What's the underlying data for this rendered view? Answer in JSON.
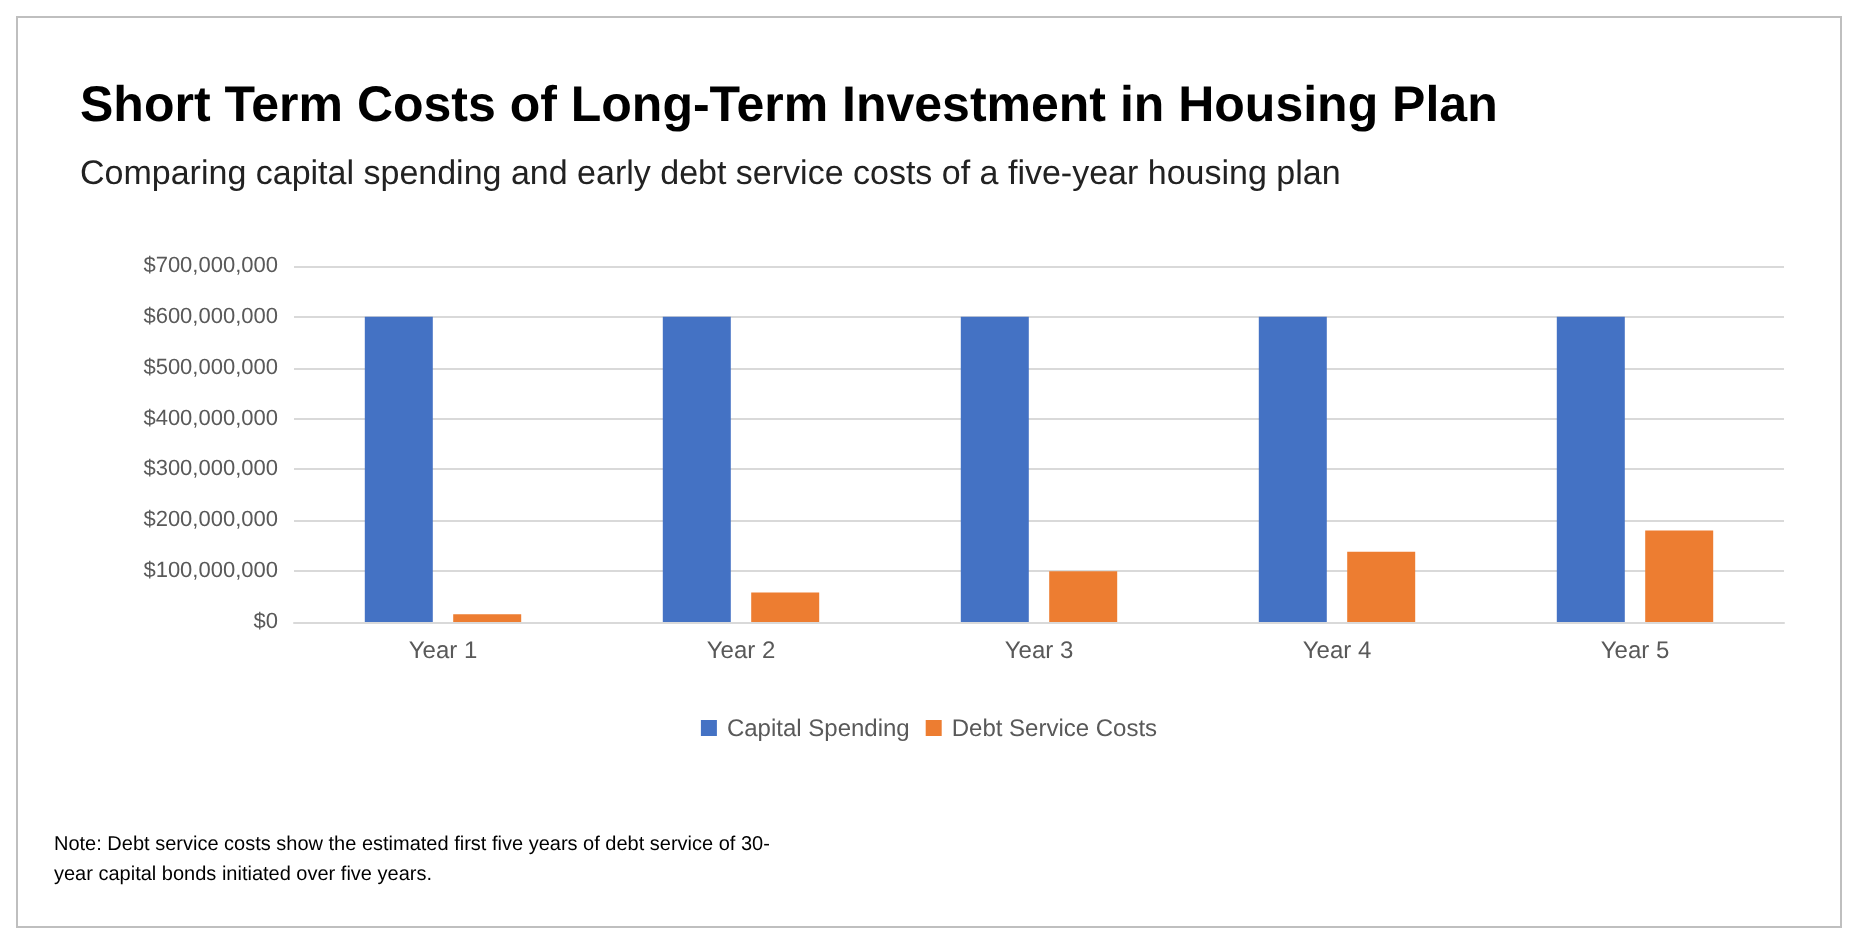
{
  "chart_data": {
    "type": "bar",
    "title": "Short Term Costs of Long-Term Investment in Housing Plan",
    "subtitle": "Comparing capital spending and early debt service costs of a five-year housing plan",
    "categories": [
      "Year 1",
      "Year 2",
      "Year 3",
      "Year 4",
      "Year 5"
    ],
    "series": [
      {
        "name": "Capital Spending",
        "color": "#4472c4",
        "values": [
          600000000,
          600000000,
          600000000,
          600000000,
          600000000
        ]
      },
      {
        "name": "Debt Service Costs",
        "color": "#ed7d31",
        "values": [
          15000000,
          58000000,
          100000000,
          138000000,
          180000000
        ]
      }
    ],
    "ylim": [
      0,
      700000000
    ],
    "yticks": [
      {
        "value": 0,
        "label": "$0"
      },
      {
        "value": 100000000,
        "label": "$100,000,000"
      },
      {
        "value": 200000000,
        "label": "$200,000,000"
      },
      {
        "value": 300000000,
        "label": "$300,000,000"
      },
      {
        "value": 400000000,
        "label": "$400,000,000"
      },
      {
        "value": 500000000,
        "label": "$500,000,000"
      },
      {
        "value": 600000000,
        "label": "$600,000,000"
      },
      {
        "value": 700000000,
        "label": "$700,000,000"
      }
    ],
    "grid": "y",
    "legend": "bottom",
    "annotations": [
      "Note: Debt service costs show the estimated first five years of debt service of 30-\nyear capital bonds initiated over five years."
    ]
  }
}
